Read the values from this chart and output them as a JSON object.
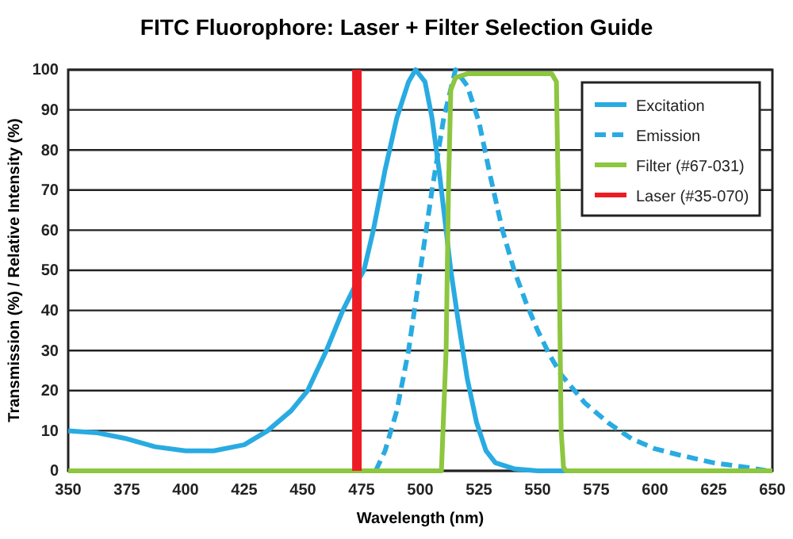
{
  "chart_data": {
    "type": "line",
    "title": "FITC Fluorophore: Laser + Filter Selection Guide",
    "xlabel": "Wavelength (nm)",
    "ylabel": "Transmission (%) / Relative Intensity (%)",
    "xlim": [
      350,
      650
    ],
    "xticks": [
      350,
      375,
      400,
      425,
      450,
      475,
      500,
      525,
      550,
      575,
      600,
      625,
      650
    ],
    "ylim": [
      0,
      100
    ],
    "yticks": [
      0,
      10,
      20,
      30,
      40,
      50,
      60,
      70,
      80,
      90,
      100
    ],
    "grid": "y",
    "legend": "top right",
    "series": [
      {
        "name": "Excitation",
        "color": "#29abe2",
        "line_style": "solid",
        "x": [
          350,
          362,
          375,
          387,
          400,
          412,
          425,
          435,
          445,
          452,
          460,
          467,
          473,
          476,
          480,
          485,
          490,
          495,
          498,
          502,
          505,
          508,
          510,
          513,
          516,
          520,
          524,
          528,
          532,
          540,
          550,
          650
        ],
        "values": [
          10,
          9.5,
          8,
          6,
          5,
          5,
          6.5,
          10,
          15,
          20,
          30,
          40,
          47,
          50,
          60,
          75,
          88,
          97,
          100,
          97,
          88,
          75,
          65,
          50,
          38,
          23,
          12,
          5,
          2,
          0.5,
          0,
          0
        ]
      },
      {
        "name": "Emission",
        "color": "#29abe2",
        "line_style": "dashed",
        "x": [
          481,
          485,
          490,
          495,
          500,
          505,
          510,
          515,
          520,
          525,
          530,
          535,
          540,
          545,
          550,
          555,
          560,
          570,
          580,
          590,
          600,
          610,
          625,
          640,
          648
        ],
        "values": [
          0,
          5,
          15,
          30,
          50,
          70,
          88,
          100,
          96,
          87,
          73,
          60,
          50,
          42,
          35,
          29,
          24,
          17,
          12,
          8,
          5.5,
          4,
          2,
          0.8,
          0
        ]
      },
      {
        "name": "Filter (#67-031)",
        "color": "#8dc63f",
        "line_style": "solid",
        "x": [
          350,
          509,
          511,
          512,
          513,
          515,
          520,
          530,
          540,
          550,
          556,
          558,
          559,
          560,
          561,
          562,
          650
        ],
        "values": [
          0,
          0,
          30,
          70,
          95,
          98,
          99,
          99,
          99,
          99,
          99,
          97,
          60,
          10,
          1,
          0,
          0
        ]
      },
      {
        "name": "Laser (#35-070)",
        "color": "#ed1c24",
        "line_style": "solid",
        "x": [
          473,
          473
        ],
        "values": [
          0,
          100
        ]
      }
    ]
  }
}
